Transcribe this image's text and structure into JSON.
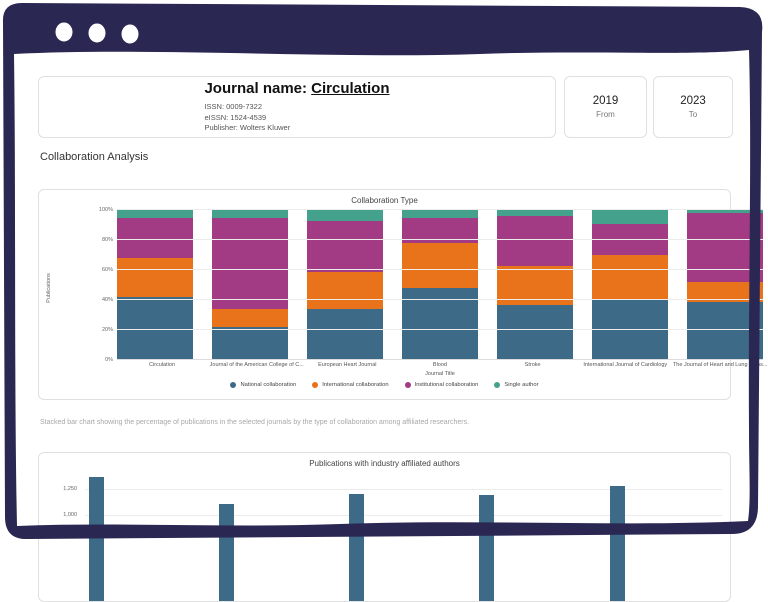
{
  "window": {
    "controls": [
      "window-control",
      "window-control",
      "window-control"
    ]
  },
  "colors": {
    "frame": "#2b2753",
    "national": "#3C6A87",
    "international": "#E8731B",
    "institutional": "#A23B83",
    "single_author": "#43A18C"
  },
  "header": {
    "journal_label": "Journal name: ",
    "journal_name": "Circulation",
    "issn": "ISSN: 0009-7322",
    "eissn": "eISSN: 1524-4539",
    "publisher": "Publisher: Wolters Kluwer",
    "from": {
      "value": "2019",
      "label": "From"
    },
    "to": {
      "value": "2023",
      "label": "To"
    }
  },
  "section_title": "Collaboration Analysis",
  "caption": "Stacked bar chart showing the percentage of publications in the selected journals by the type of collaboration among affiliated researchers.",
  "chart_data": [
    {
      "type": "bar",
      "stacked": true,
      "title": "Collaboration Type",
      "xlabel": "Journal Title",
      "ylabel": "Publications",
      "ylim": [
        0,
        100
      ],
      "y_ticks": [
        "0%",
        "20%",
        "40%",
        "60%",
        "80%",
        "100%"
      ],
      "grid": true,
      "legend_position": "bottom",
      "categories": [
        "Circulation",
        "Journal of the American College of C...",
        "European Heart Journal",
        "Blood",
        "Stroke",
        "International Journal of Cardiology",
        "The Journal of Heart and Lung Trans..."
      ],
      "series": [
        {
          "name": "National collaboration",
          "color": "#3C6A87",
          "values": [
            42,
            22,
            34,
            48,
            37,
            40,
            39
          ]
        },
        {
          "name": "International collaboration",
          "color": "#E8731B",
          "values": [
            26,
            12,
            25,
            30,
            26,
            30,
            13
          ]
        },
        {
          "name": "Institutional collaboration",
          "color": "#A23B83",
          "values": [
            27,
            61,
            34,
            17,
            33,
            21,
            46
          ]
        },
        {
          "name": "Single author",
          "color": "#43A18C",
          "values": [
            5,
            5,
            7,
            5,
            4,
            9,
            2
          ]
        }
      ]
    },
    {
      "type": "bar",
      "title": "Publications with industry affiliated authors",
      "color": "#3C6A87",
      "y_ticks": [
        "1,250",
        "1,000"
      ],
      "y_tick_values": [
        1250,
        1000
      ],
      "values": [
        1370,
        1110,
        1205,
        1195,
        1280
      ],
      "clipped_bottom": true
    }
  ]
}
